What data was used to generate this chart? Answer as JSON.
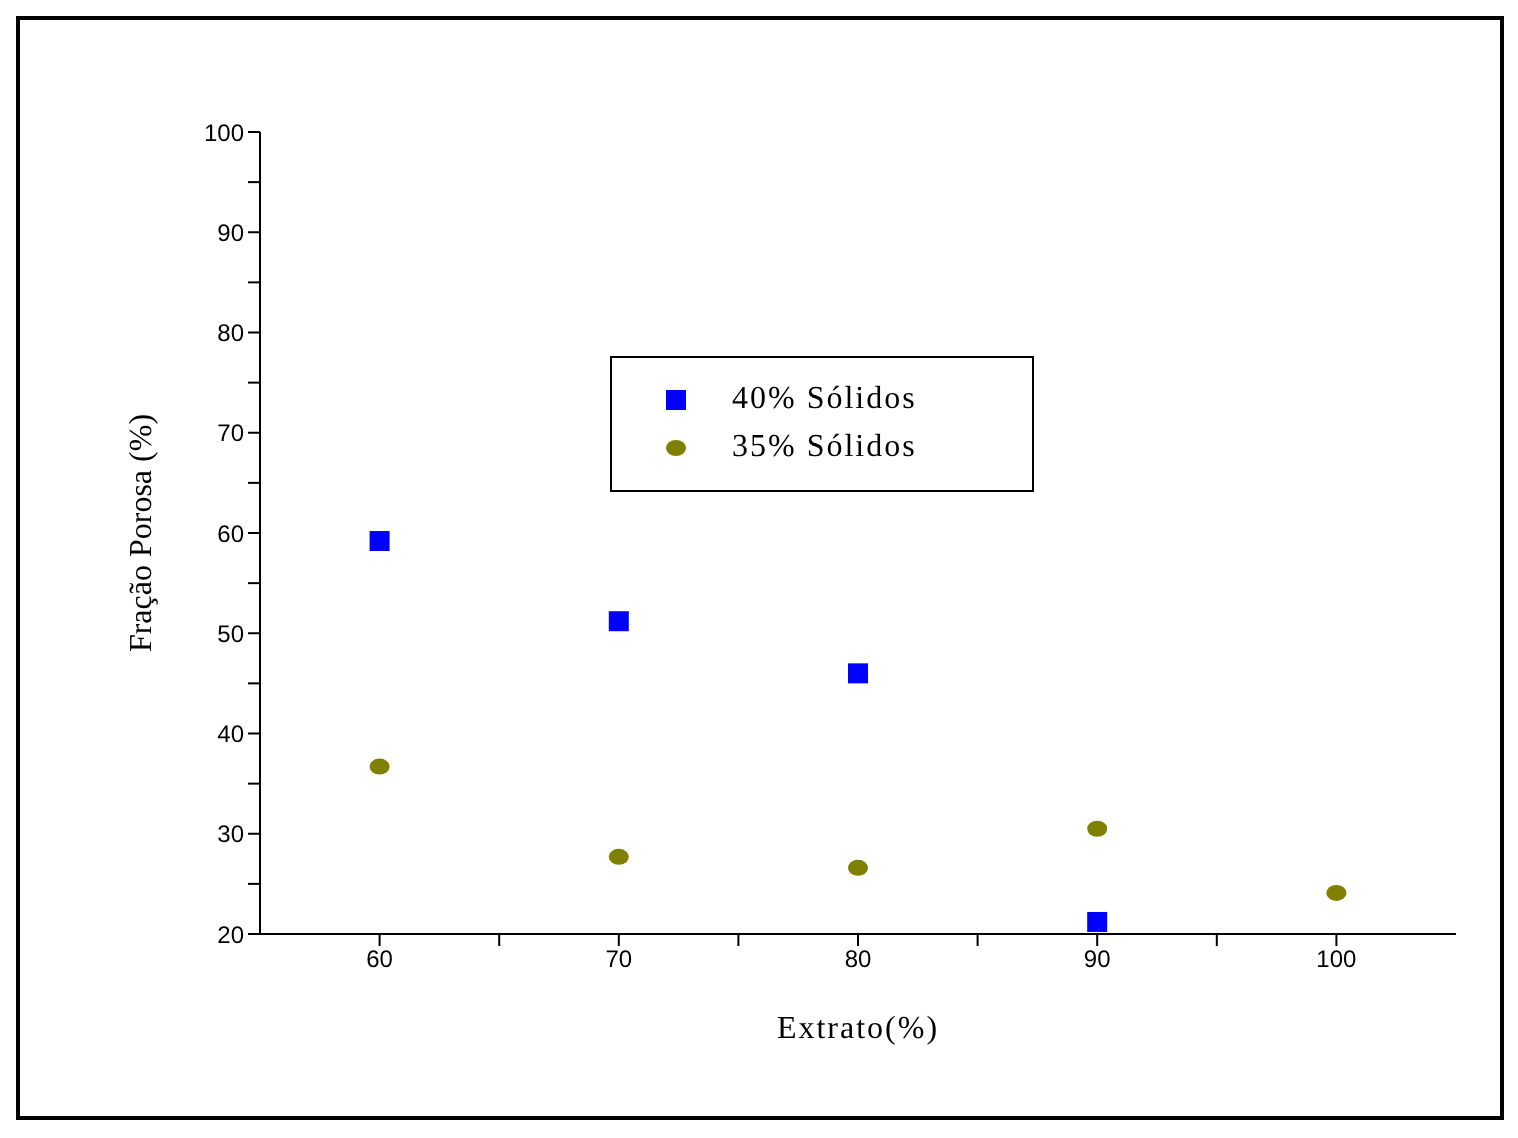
{
  "chart_data": {
    "type": "scatter",
    "xlabel": "Extrato(%)",
    "ylabel": "Fração Porosa (%)",
    "xlim": [
      55,
      105
    ],
    "xticks": [
      60,
      {
        "value": 65,
        "label": null
      },
      70,
      {
        "value": 75,
        "label": null
      },
      80,
      {
        "value": 85,
        "label": null
      },
      90,
      {
        "value": 95,
        "label": null
      },
      100
    ],
    "ylim": [
      20,
      100
    ],
    "yticks": [
      20,
      {
        "value": 25,
        "label": null
      },
      30,
      {
        "value": 35,
        "label": null
      },
      40,
      {
        "value": 45,
        "label": null
      },
      50,
      {
        "value": 55,
        "label": null
      },
      60,
      {
        "value": 65,
        "label": null
      },
      70,
      {
        "value": 75,
        "label": null
      },
      80,
      {
        "value": 85,
        "label": null
      },
      90,
      {
        "value": 95,
        "label": null
      },
      100
    ],
    "grid": false,
    "legend": "top",
    "series": [
      {
        "name": "40% Sólidos",
        "color": "#0000ff",
        "marker": "square",
        "x": [
          60,
          70,
          80,
          90
        ],
        "values": [
          59.2,
          51.2,
          46,
          21.2
        ]
      },
      {
        "name": "35% Sólidos",
        "color": "#808000",
        "marker": "circle",
        "x": [
          60,
          70,
          80,
          90,
          100
        ],
        "values": [
          36.7,
          27.7,
          26.6,
          30.5,
          24.1
        ]
      }
    ]
  }
}
